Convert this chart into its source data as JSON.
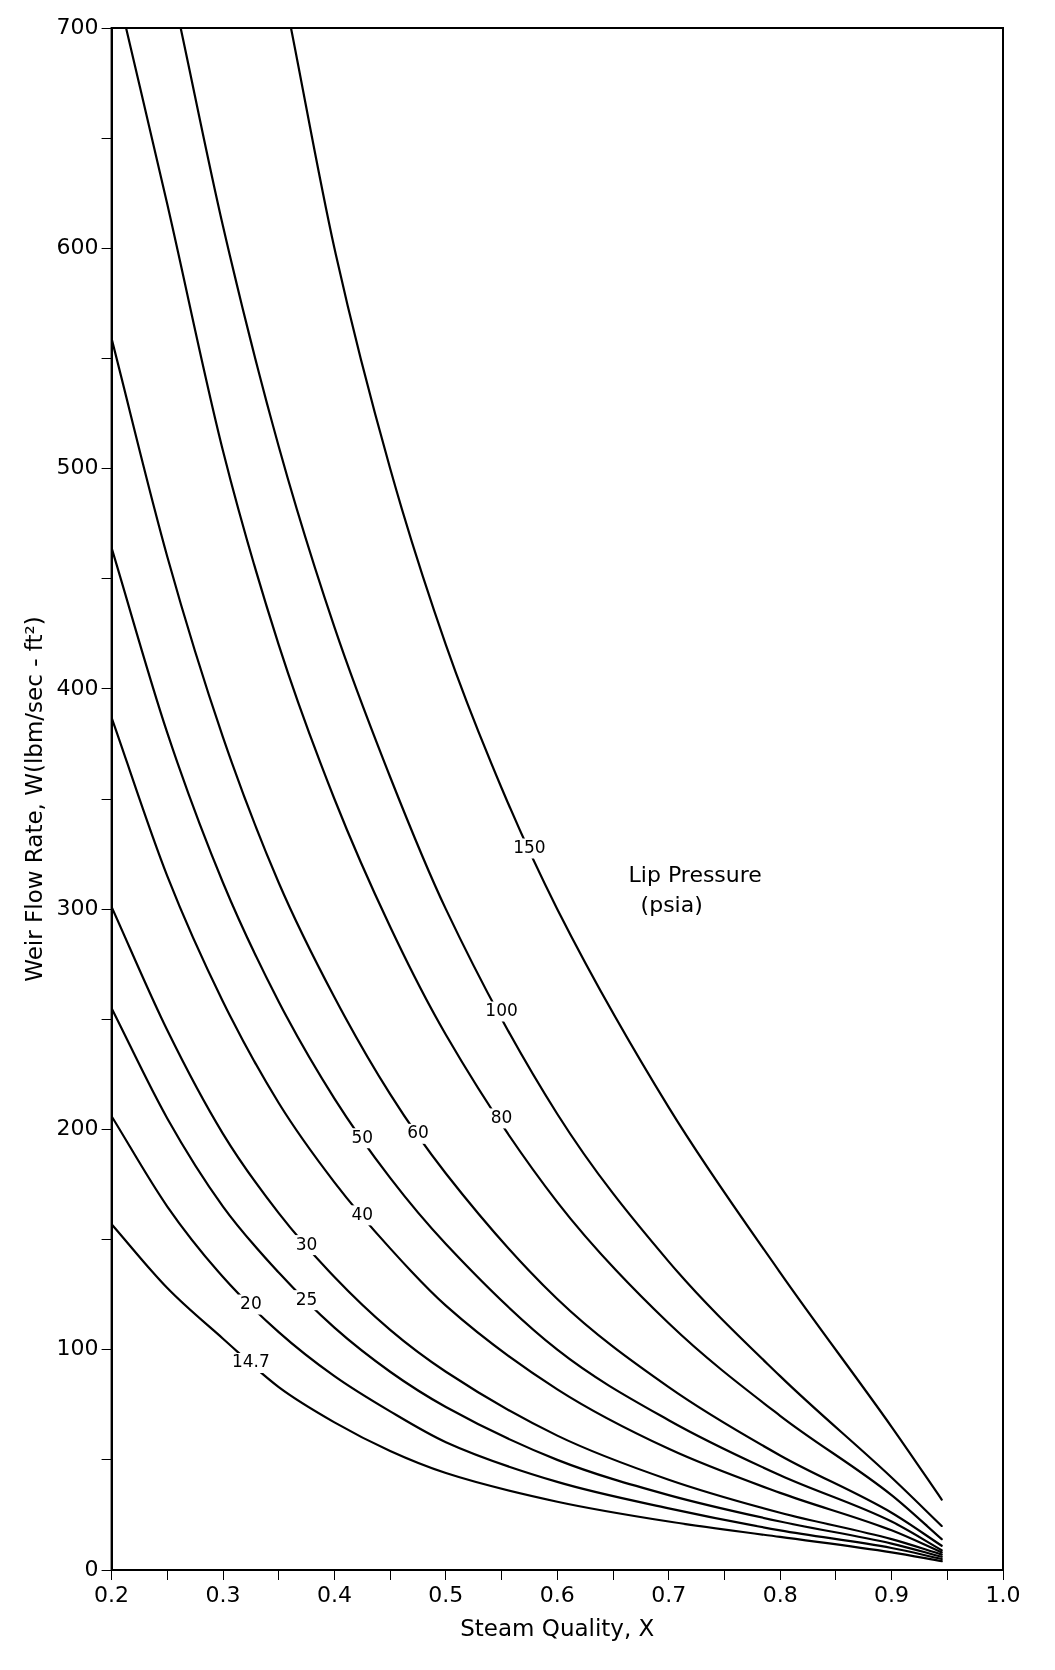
{
  "chart_data": {
    "type": "line",
    "xlabel": "Steam Quality, X",
    "ylabel": "Weir Flow Rate, W(lbm/sec - ft²)",
    "annotations": [
      "Lip Pressure (psia)"
    ],
    "xlim": [
      0.2,
      1.0
    ],
    "ylim": [
      0,
      700
    ],
    "xticks": [
      {
        "value": 0.2,
        "label": "0.2"
      },
      {
        "value": 0.25,
        "label": null
      },
      {
        "value": 0.3,
        "label": "0.3"
      },
      {
        "value": 0.35,
        "label": null
      },
      {
        "value": 0.4,
        "label": "0.4"
      },
      {
        "value": 0.45,
        "label": null
      },
      {
        "value": 0.5,
        "label": "0.5"
      },
      {
        "value": 0.55,
        "label": null
      },
      {
        "value": 0.6,
        "label": "0.6"
      },
      {
        "value": 0.65,
        "label": null
      },
      {
        "value": 0.7,
        "label": "0.7"
      },
      {
        "value": 0.75,
        "label": null
      },
      {
        "value": 0.8,
        "label": "0.8"
      },
      {
        "value": 0.85,
        "label": null
      },
      {
        "value": 0.9,
        "label": "0.9"
      },
      {
        "value": 0.95,
        "label": null
      },
      {
        "value": 1.0,
        "label": "1.0"
      }
    ],
    "yticks": [
      0,
      {
        "value": 50,
        "label": null
      },
      100,
      {
        "value": 150,
        "label": null
      },
      200,
      {
        "value": 250,
        "label": null
      },
      300,
      {
        "value": 350,
        "label": null
      },
      400,
      {
        "value": 450,
        "label": null
      },
      500,
      {
        "value": 550,
        "label": null
      },
      600,
      {
        "value": 650,
        "label": null
      },
      700
    ],
    "grid": false,
    "legend": false,
    "marker": "none",
    "line_style": "solid",
    "series": [
      {
        "name": "14.7",
        "color": "#000000",
        "x": [
          0.2,
          0.25,
          0.3,
          0.35,
          0.4,
          0.45,
          0.5,
          0.6,
          0.7,
          0.8,
          0.9,
          0.945
        ],
        "values": [
          157,
          128,
          105,
          83,
          67,
          54,
          44,
          31,
          22,
          15,
          8,
          4
        ]
      },
      {
        "name": "20",
        "color": "#000000",
        "x": [
          0.2,
          0.25,
          0.3,
          0.35,
          0.4,
          0.45,
          0.5,
          0.6,
          0.7,
          0.8,
          0.9,
          0.945
        ],
        "values": [
          206,
          165,
          133,
          108,
          88,
          72,
          58,
          40,
          28,
          18,
          10,
          5
        ]
      },
      {
        "name": "25",
        "color": "#000000",
        "x": [
          0.2,
          0.25,
          0.3,
          0.35,
          0.4,
          0.45,
          0.5,
          0.6,
          0.7,
          0.8,
          0.9,
          0.945
        ],
        "values": [
          255,
          205,
          165,
          135,
          110,
          90,
          74,
          50,
          34,
          22,
          12,
          6
        ]
      },
      {
        "name": "30",
        "color": "#000000",
        "x": [
          0.2,
          0.25,
          0.3,
          0.35,
          0.4,
          0.45,
          0.5,
          0.6,
          0.7,
          0.8,
          0.9,
          0.945
        ],
        "values": [
          301,
          245,
          198,
          162,
          133,
          109,
          90,
          61,
          41,
          26,
          14,
          7
        ]
      },
      {
        "name": "40",
        "color": "#000000",
        "x": [
          0.2,
          0.25,
          0.3,
          0.35,
          0.4,
          0.45,
          0.5,
          0.6,
          0.7,
          0.8,
          0.9,
          0.945
        ],
        "values": [
          387,
          315,
          258,
          212,
          176,
          146,
          120,
          82,
          55,
          35,
          18,
          8
        ]
      },
      {
        "name": "50",
        "color": "#000000",
        "x": [
          0.2,
          0.25,
          0.3,
          0.35,
          0.4,
          0.45,
          0.5,
          0.6,
          0.7,
          0.8,
          0.9,
          0.945
        ],
        "values": [
          464,
          380,
          312,
          258,
          214,
          178,
          148,
          100,
          68,
          43,
          22,
          9
        ]
      },
      {
        "name": "60",
        "color": "#000000",
        "x": [
          0.2,
          0.25,
          0.3,
          0.35,
          0.4,
          0.45,
          0.5,
          0.6,
          0.7,
          0.8,
          0.9,
          0.945
        ],
        "values": [
          559,
          460,
          378,
          312,
          260,
          216,
          180,
          123,
          83,
          52,
          26,
          11
        ]
      },
      {
        "name": "80",
        "color": "#000000",
        "x": [
          0.213,
          0.25,
          0.3,
          0.35,
          0.4,
          0.45,
          0.5,
          0.6,
          0.7,
          0.8,
          0.9,
          0.945
        ],
        "values": [
          700,
          620,
          508,
          420,
          350,
          292,
          243,
          167,
          112,
          70,
          34,
          14
        ]
      },
      {
        "name": "100",
        "color": "#000000",
        "x": [
          0.262,
          0.3,
          0.35,
          0.4,
          0.45,
          0.5,
          0.6,
          0.7,
          0.8,
          0.9,
          0.945
        ],
        "values": [
          700,
          610,
          510,
          428,
          360,
          300,
          207,
          140,
          88,
          42,
          20
        ]
      },
      {
        "name": "150",
        "color": "#000000",
        "x": [
          0.361,
          0.4,
          0.45,
          0.5,
          0.55,
          0.6,
          0.7,
          0.8,
          0.9,
          0.945
        ],
        "values": [
          700,
          600,
          500,
          420,
          355,
          300,
          210,
          135,
          65,
          32
        ]
      }
    ]
  }
}
